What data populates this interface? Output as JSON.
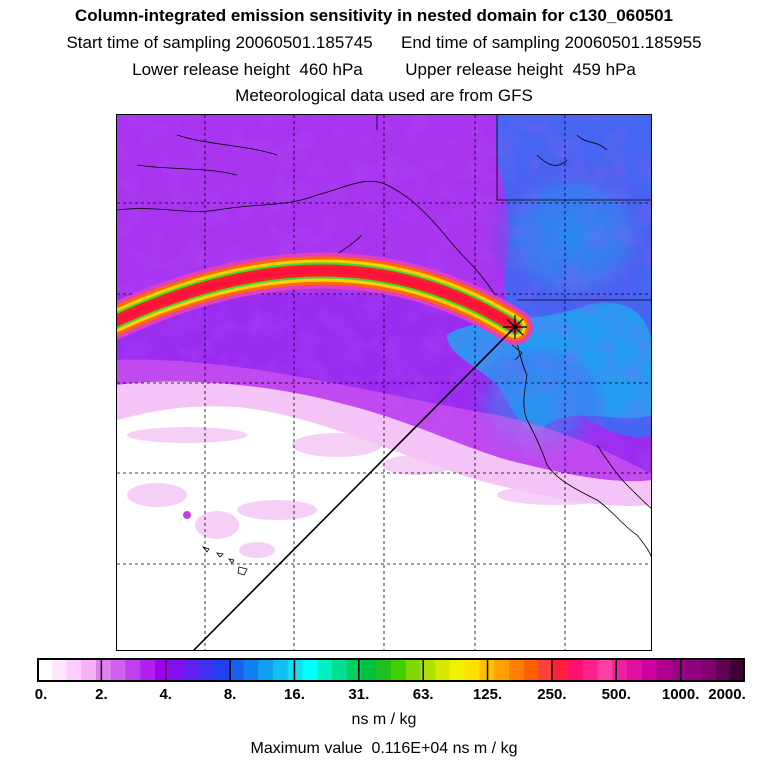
{
  "title": {
    "main": "Column-integrated emission sensitivity in nested domain for c130_060501",
    "sampling": "Start time of sampling 20060501.185745      End time of sampling 20060501.185955",
    "release": "Lower release height  460 hPa         Upper release height  459 hPa",
    "met": "Meteorological data used are from GFS"
  },
  "colorbar": {
    "tick_labels": [
      "0.",
      "2.",
      "4.",
      "8.",
      "16.",
      "31.",
      "63.",
      "125.",
      "250.",
      "500.",
      "1000.",
      "2000."
    ],
    "colors": [
      "#ffffff",
      "#ffe6ff",
      "#ffccff",
      "#f7b0f7",
      "#e080ee",
      "#d060ee",
      "#c040f0",
      "#b020f0",
      "#a000f0",
      "#8010f0",
      "#6020f0",
      "#4030f0",
      "#2040f0",
      "#1860f0",
      "#1080f0",
      "#10a0f0",
      "#10c0f0",
      "#10e0f0",
      "#00ffff",
      "#00f0c0",
      "#00e090",
      "#00d060",
      "#00c040",
      "#20c020",
      "#40d000",
      "#80d800",
      "#b0e000",
      "#d8e800",
      "#f0f000",
      "#ffe000",
      "#ffc000",
      "#ffa000",
      "#ff8000",
      "#ff6000",
      "#ff4040",
      "#ff2040",
      "#ff1070",
      "#ff2090",
      "#ff40a0",
      "#f020a0",
      "#e010a0",
      "#d000a0",
      "#b00090",
      "#a00088",
      "#900080",
      "#800070",
      "#600050",
      "#400030"
    ],
    "units": "ns m / kg"
  },
  "max_value": "Maximum value  0.116E+04 ns m / kg"
}
